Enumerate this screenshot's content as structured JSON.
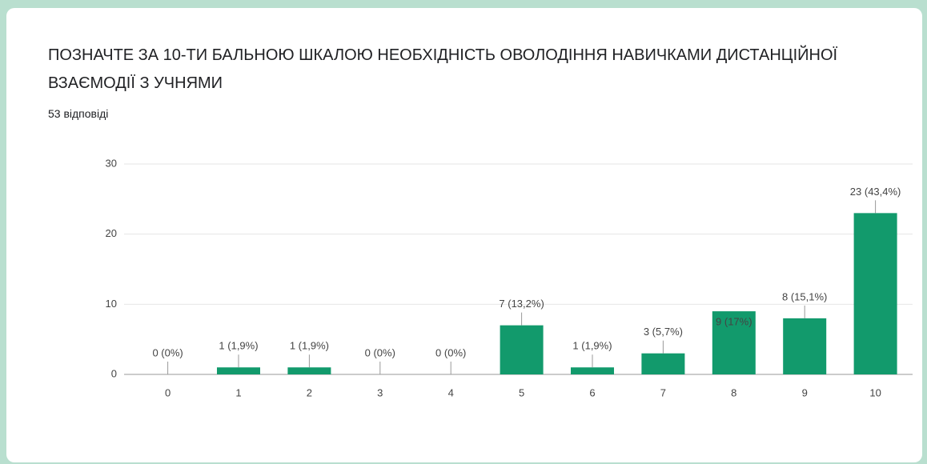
{
  "chart_data": {
    "type": "bar",
    "title": "ПОЗНАЧТЕ ЗА 10-ТИ БАЛЬНОЮ ШКАЛОЮ НЕОБХІДНІСТЬ ОВОЛОДІННЯ НАВИЧКАМИ ДИСТАНЦІЙНОЇ ВЗАЄМОДІЇ З УЧНЯМИ",
    "subtitle": "53 відповіді",
    "categories": [
      "0",
      "1",
      "2",
      "3",
      "4",
      "5",
      "6",
      "7",
      "8",
      "9",
      "10"
    ],
    "values": [
      0,
      1,
      1,
      0,
      0,
      7,
      1,
      3,
      9,
      8,
      23
    ],
    "value_labels": [
      "0 (0%)",
      "1 (1,9%)",
      "1 (1,9%)",
      "0 (0%)",
      "0 (0%)",
      "7 (13,2%)",
      "1 (1,9%)",
      "3 (5,7%)",
      "9 (17%)",
      "8 (15,1%)",
      "23 (43,4%)"
    ],
    "color": "#129a6c",
    "ylim": [
      0,
      30
    ],
    "yticks": [
      0,
      10,
      20,
      30
    ],
    "grid": true
  }
}
